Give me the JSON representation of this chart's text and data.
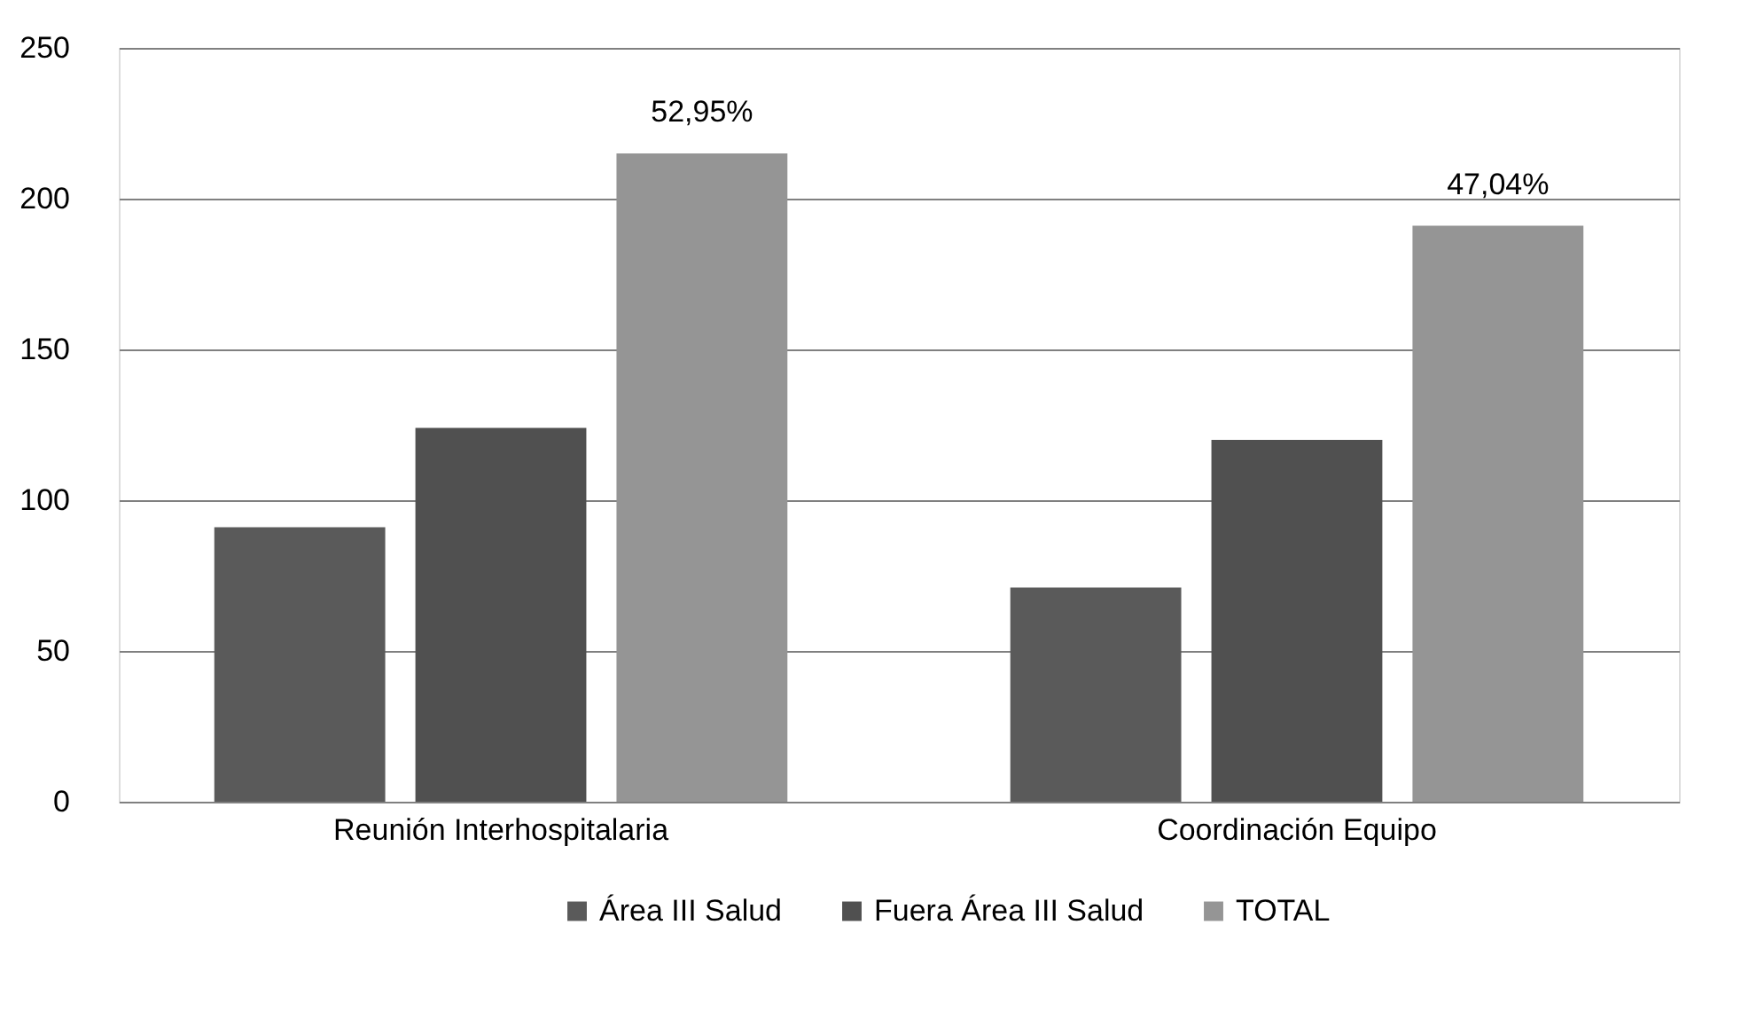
{
  "chart_data": {
    "type": "bar",
    "categories": [
      "Reunión Interhospitalaria",
      "Coordinación Equipo"
    ],
    "series": [
      {
        "name": "Área III Salud",
        "color": "#5a5a5a",
        "values": [
          91,
          71
        ]
      },
      {
        "name": "Fuera Área III Salud",
        "color": "#505050",
        "values": [
          124,
          120
        ]
      },
      {
        "name": "TOTAL",
        "color": "#959595",
        "values": [
          215,
          191
        ]
      }
    ],
    "annotations": [
      "52,95%",
      "47,04%"
    ],
    "ylim": [
      0,
      250
    ],
    "yticks": [
      0,
      50,
      100,
      150,
      200,
      250
    ],
    "grid": "y",
    "legend": "bottom"
  }
}
